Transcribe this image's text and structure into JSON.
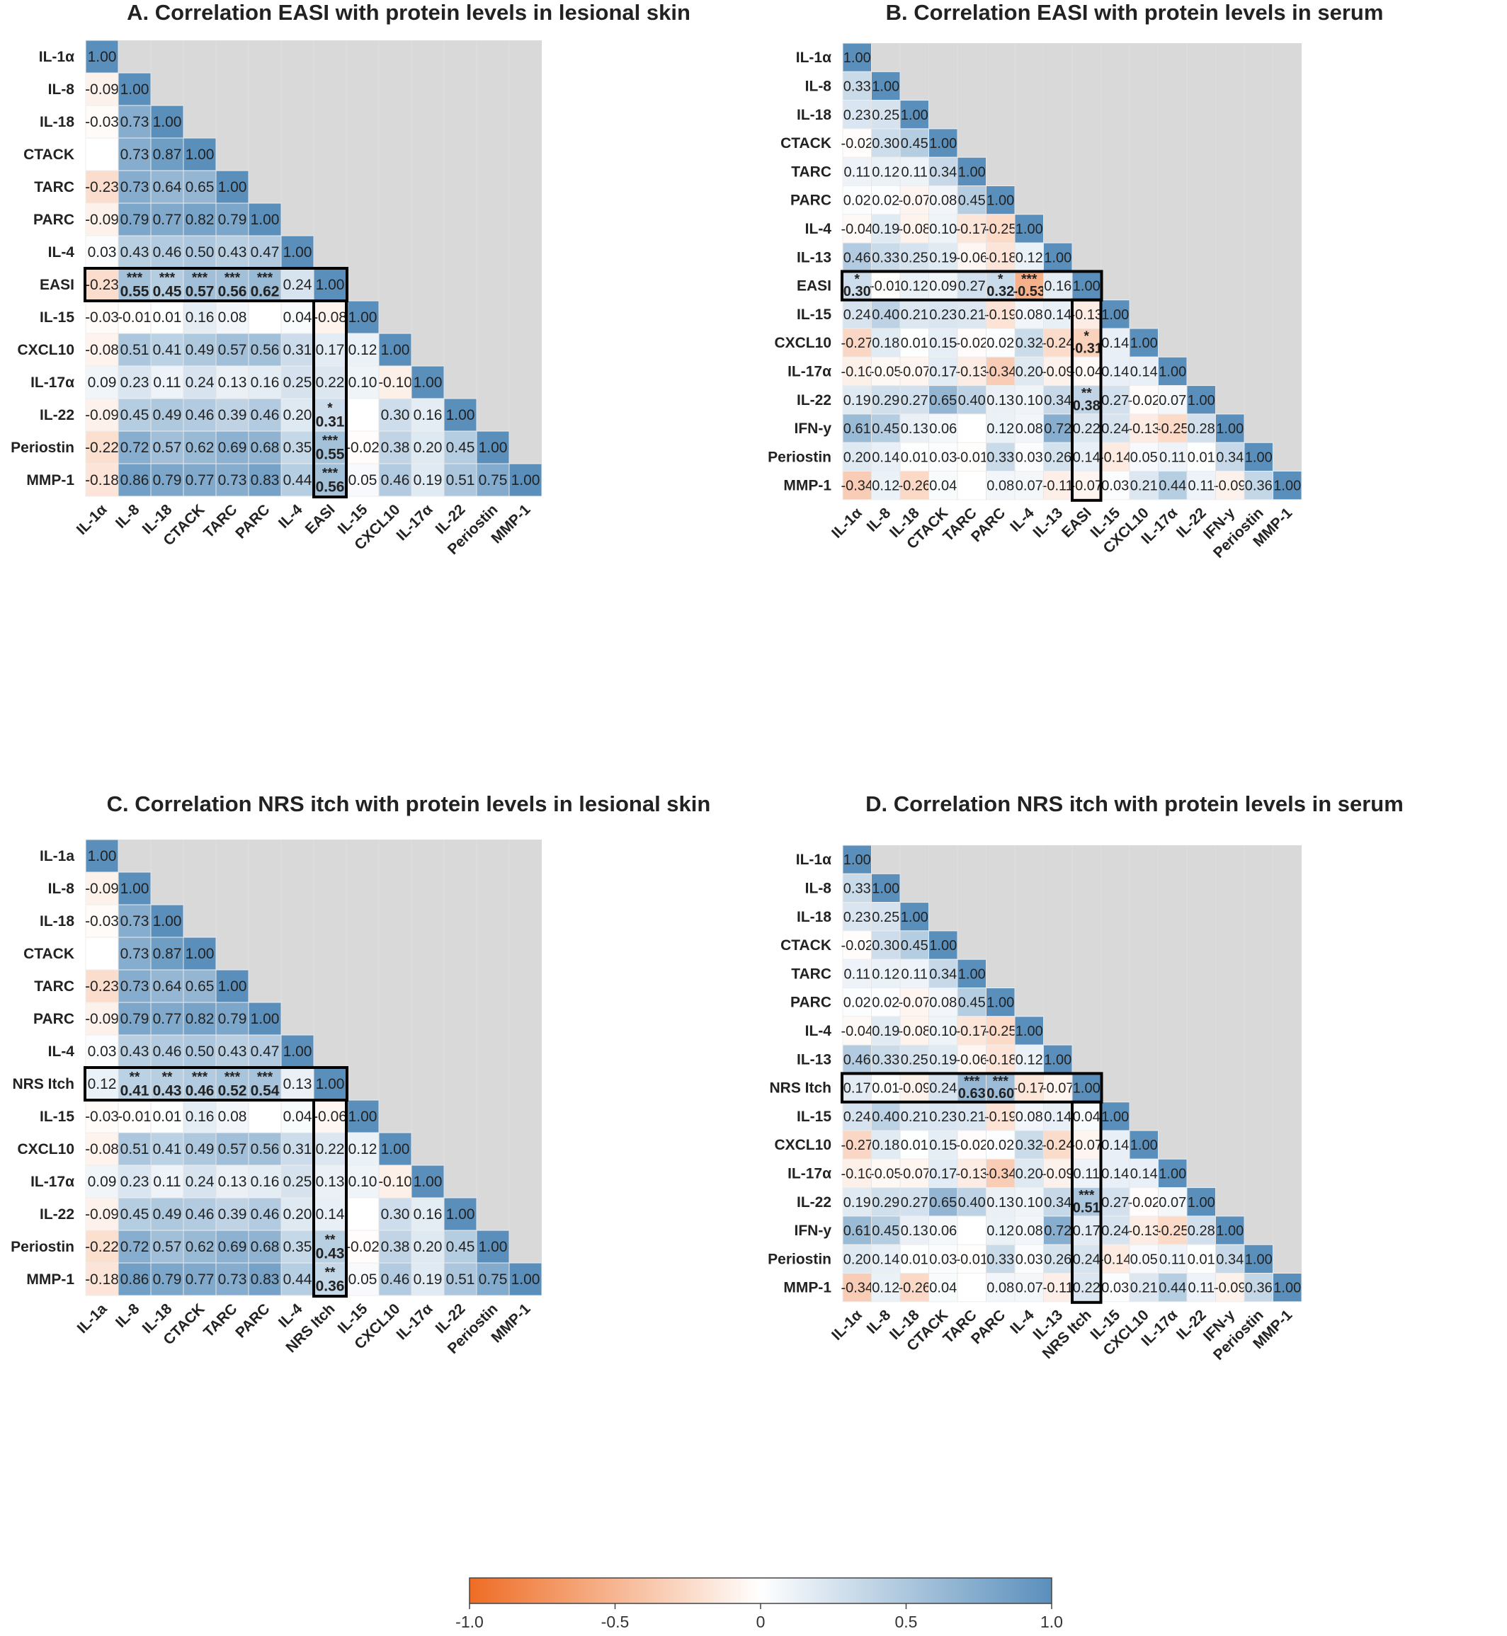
{
  "colors": {
    "negative": "#ee6c24",
    "zero": "#ffffff",
    "positive": "#5a8fbc",
    "background": "#d9d9d9"
  },
  "colorbar": {
    "ticks": [
      "-1.0",
      "-0.5",
      "0",
      "0.5",
      "1.0"
    ],
    "min": -1,
    "max": 1
  },
  "chart_data": [
    {
      "type": "heatmap",
      "title": "A. Correlation EASI with protein levels in lesional skin",
      "row_labels": [
        "IL-1α",
        "IL-8",
        "IL-18",
        "CTACK",
        "TARC",
        "PARC",
        "IL-4",
        "EASI",
        "IL-15",
        "CXCL10",
        "IL-17α",
        "IL-22",
        "Periostin",
        "MMP-1"
      ],
      "col_labels": [
        "IL-1α",
        "IL-8",
        "IL-18",
        "CTACK",
        "TARC",
        "PARC",
        "IL-4",
        "EASI",
        "IL-15",
        "CXCL10",
        "IL-17α",
        "IL-22",
        "Periostin",
        "MMP-1"
      ],
      "highlight_index": 7,
      "rows": [
        [
          "1.00"
        ],
        [
          "-0.09",
          "1.00"
        ],
        [
          "-0.03",
          "0.73",
          "1.00"
        ],
        [
          "",
          "0.73",
          "0.87",
          "1.00"
        ],
        [
          "-0.23",
          "0.73",
          "0.64",
          "0.65",
          "1.00"
        ],
        [
          "-0.09",
          "0.79",
          "0.77",
          "0.82",
          "0.79",
          "1.00"
        ],
        [
          "0.03",
          "0.43",
          "0.46",
          "0.50",
          "0.43",
          "0.47",
          "1.00"
        ],
        [
          "-0.23",
          "0.55",
          "0.45",
          "0.57",
          "0.56",
          "0.62",
          "0.24",
          "1.00"
        ],
        [
          "-0.03",
          "-0.01",
          "0.01",
          "0.16",
          "0.08",
          "",
          "0.04",
          "-0.08",
          "1.00"
        ],
        [
          "-0.08",
          "0.51",
          "0.41",
          "0.49",
          "0.57",
          "0.56",
          "0.31",
          "0.17",
          "0.12",
          "1.00"
        ],
        [
          "0.09",
          "0.23",
          "0.11",
          "0.24",
          "0.13",
          "0.16",
          "0.25",
          "0.22",
          "0.10",
          "-0.10",
          "1.00"
        ],
        [
          "-0.09",
          "0.45",
          "0.49",
          "0.46",
          "0.39",
          "0.46",
          "0.20",
          "0.31",
          "",
          "0.30",
          "0.16",
          "1.00"
        ],
        [
          "-0.22",
          "0.72",
          "0.57",
          "0.62",
          "0.69",
          "0.68",
          "0.35",
          "0.55",
          "-0.02",
          "0.38",
          "0.20",
          "0.45",
          "1.00"
        ],
        [
          "-0.18",
          "0.86",
          "0.79",
          "0.77",
          "0.73",
          "0.83",
          "0.44",
          "0.56",
          "0.05",
          "0.46",
          "0.19",
          "0.51",
          "0.75",
          "1.00"
        ]
      ],
      "significance": [
        [
          "7-1",
          "***"
        ],
        [
          "7-2",
          "***"
        ],
        [
          "7-3",
          "***"
        ],
        [
          "7-4",
          "***"
        ],
        [
          "7-5",
          "***"
        ],
        [
          "11-7",
          "*"
        ],
        [
          "12-7",
          "***"
        ],
        [
          "13-7",
          "***"
        ]
      ]
    },
    {
      "type": "heatmap",
      "title": "B. Correlation EASI with protein levels in serum",
      "row_labels": [
        "IL-1α",
        "IL-8",
        "IL-18",
        "CTACK",
        "TARC",
        "PARC",
        "IL-4",
        "IL-13",
        "EASI",
        "IL-15",
        "CXCL10",
        "IL-17α",
        "IL-22",
        "IFN-y",
        "Periostin",
        "MMP-1"
      ],
      "col_labels": [
        "IL-1α",
        "IL-8",
        "IL-18",
        "CTACK",
        "TARC",
        "PARC",
        "IL-4",
        "IL-13",
        "EASI",
        "IL-15",
        "CXCL10",
        "IL-17α",
        "IL-22",
        "IFN-y",
        "Periostin",
        "MMP-1"
      ],
      "highlight_index": 8,
      "rows": [
        [
          "1.00"
        ],
        [
          "0.33",
          "1.00"
        ],
        [
          "0.23",
          "0.25",
          "1.00"
        ],
        [
          "-0.02",
          "0.30",
          "0.45",
          "1.00"
        ],
        [
          "0.11",
          "0.12",
          "0.11",
          "0.34",
          "1.00"
        ],
        [
          "0.02",
          "0.02",
          "-0.07",
          "0.08",
          "0.45",
          "1.00"
        ],
        [
          "-0.04",
          "0.19",
          "-0.08",
          "0.10",
          "-0.17",
          "-0.25",
          "1.00"
        ],
        [
          "0.46",
          "0.33",
          "0.25",
          "0.19",
          "-0.06",
          "-0.18",
          "0.12",
          "1.00"
        ],
        [
          "0.30",
          "-0.01",
          "0.12",
          "0.09",
          "0.27",
          "0.32",
          "-0.53",
          "0.16",
          "1.00"
        ],
        [
          "0.24",
          "0.40",
          "0.21",
          "0.23",
          "0.21",
          "-0.19",
          "0.08",
          "0.14",
          "-0.13",
          "1.00"
        ],
        [
          "-0.27",
          "0.18",
          "0.01",
          "0.15",
          "-0.02",
          "0.02",
          "0.32",
          "-0.24",
          "-0.31",
          "0.14",
          "1.00"
        ],
        [
          "-0.10",
          "-0.05",
          "-0.07",
          "0.17",
          "-0.13",
          "-0.34",
          "0.20",
          "-0.09",
          "-0.04",
          "0.14",
          "0.14",
          "1.00"
        ],
        [
          "0.19",
          "0.29",
          "0.27",
          "0.65",
          "0.40",
          "0.13",
          "0.10",
          "0.34",
          "0.38",
          "0.27",
          "-0.02",
          "0.07",
          "1.00"
        ],
        [
          "0.61",
          "0.45",
          "0.13",
          "0.06",
          "",
          "0.12",
          "0.08",
          "0.72",
          "0.22",
          "0.24",
          "-0.13",
          "-0.25",
          "0.28",
          "1.00"
        ],
        [
          "0.20",
          "0.14",
          "0.01",
          "0.03",
          "-0.01",
          "0.33",
          "0.03",
          "0.26",
          "0.14",
          "-0.14",
          "0.05",
          "0.11",
          "0.01",
          "0.34",
          "1.00"
        ],
        [
          "-0.34",
          "0.12",
          "-0.26",
          "0.04",
          "",
          "0.08",
          "0.07",
          "-0.11",
          "-0.07",
          "0.03",
          "0.21",
          "0.44",
          "0.11",
          "-0.09",
          "0.36",
          "1.00"
        ]
      ],
      "significance": [
        [
          "8-0",
          "*"
        ],
        [
          "8-5",
          "*"
        ],
        [
          "8-6",
          "***"
        ],
        [
          "10-8",
          "*"
        ],
        [
          "12-8",
          "**"
        ]
      ]
    },
    {
      "type": "heatmap",
      "title": "C. Correlation NRS itch with protein levels in lesional skin",
      "row_labels": [
        "IL-1a",
        "IL-8",
        "IL-18",
        "CTACK",
        "TARC",
        "PARC",
        "IL-4",
        "NRS Itch",
        "IL-15",
        "CXCL10",
        "IL-17α",
        "IL-22",
        "Periostin",
        "MMP-1"
      ],
      "col_labels": [
        "IL-1a",
        "IL-8",
        "IL-18",
        "CTACK",
        "TARC",
        "PARC",
        "IL-4",
        "NRS Itch",
        "IL-15",
        "CXCL10",
        "IL-17α",
        "IL-22",
        "Periostin",
        "MMP-1"
      ],
      "highlight_index": 7,
      "rows": [
        [
          "1.00"
        ],
        [
          "-0.09",
          "1.00"
        ],
        [
          "-0.03",
          "0.73",
          "1.00"
        ],
        [
          "",
          "0.73",
          "0.87",
          "1.00"
        ],
        [
          "-0.23",
          "0.73",
          "0.64",
          "0.65",
          "1.00"
        ],
        [
          "-0.09",
          "0.79",
          "0.77",
          "0.82",
          "0.79",
          "1.00"
        ],
        [
          "0.03",
          "0.43",
          "0.46",
          "0.50",
          "0.43",
          "0.47",
          "1.00"
        ],
        [
          "0.12",
          "0.41",
          "0.43",
          "0.46",
          "0.52",
          "0.54",
          "0.13",
          "1.00"
        ],
        [
          "-0.03",
          "-0.01",
          "0.01",
          "0.16",
          "0.08",
          "",
          "0.04",
          "-0.06",
          "1.00"
        ],
        [
          "-0.08",
          "0.51",
          "0.41",
          "0.49",
          "0.57",
          "0.56",
          "0.31",
          "0.22",
          "0.12",
          "1.00"
        ],
        [
          "0.09",
          "0.23",
          "0.11",
          "0.24",
          "0.13",
          "0.16",
          "0.25",
          "0.13",
          "0.10",
          "-0.10",
          "1.00"
        ],
        [
          "-0.09",
          "0.45",
          "0.49",
          "0.46",
          "0.39",
          "0.46",
          "0.20",
          "0.14",
          "",
          "0.30",
          "0.16",
          "1.00"
        ],
        [
          "-0.22",
          "0.72",
          "0.57",
          "0.62",
          "0.69",
          "0.68",
          "0.35",
          "0.43",
          "-0.02",
          "0.38",
          "0.20",
          "0.45",
          "1.00"
        ],
        [
          "-0.18",
          "0.86",
          "0.79",
          "0.77",
          "0.73",
          "0.83",
          "0.44",
          "0.36",
          "0.05",
          "0.46",
          "0.19",
          "0.51",
          "0.75",
          "1.00"
        ]
      ],
      "significance": [
        [
          "7-1",
          "**"
        ],
        [
          "7-2",
          "**"
        ],
        [
          "7-3",
          "***"
        ],
        [
          "7-4",
          "***"
        ],
        [
          "7-5",
          "***"
        ],
        [
          "12-7",
          "**"
        ],
        [
          "13-7",
          "**"
        ]
      ]
    },
    {
      "type": "heatmap",
      "title": "D. Correlation NRS itch with protein levels in serum",
      "row_labels": [
        "IL-1α",
        "IL-8",
        "IL-18",
        "CTACK",
        "TARC",
        "PARC",
        "IL-4",
        "IL-13",
        "NRS Itch",
        "IL-15",
        "CXCL10",
        "IL-17α",
        "IL-22",
        "IFN-y",
        "Periostin",
        "MMP-1"
      ],
      "col_labels": [
        "IL-1α",
        "IL-8",
        "IL-18",
        "CTACK",
        "TARC",
        "PARC",
        "IL-4",
        "IL-13",
        "NRS Itch",
        "IL-15",
        "CXCL10",
        "IL-17α",
        "IL-22",
        "IFN-y",
        "Periostin",
        "MMP-1"
      ],
      "highlight_index": 8,
      "rows": [
        [
          "1.00"
        ],
        [
          "0.33",
          "1.00"
        ],
        [
          "0.23",
          "0.25",
          "1.00"
        ],
        [
          "-0.02",
          "0.30",
          "0.45",
          "1.00"
        ],
        [
          "0.11",
          "0.12",
          "0.11",
          "0.34",
          "1.00"
        ],
        [
          "0.02",
          "0.02",
          "-0.07",
          "0.08",
          "0.45",
          "1.00"
        ],
        [
          "-0.04",
          "0.19",
          "-0.08",
          "0.10",
          "-0.17",
          "-0.25",
          "1.00"
        ],
        [
          "0.46",
          "0.33",
          "0.25",
          "0.19",
          "-0.06",
          "-0.18",
          "0.12",
          "1.00"
        ],
        [
          "0.17",
          "0.01",
          "-0.09",
          "0.24",
          "0.63",
          "0.60",
          "-0.17",
          "-0.07",
          "1.00"
        ],
        [
          "0.24",
          "0.40",
          "0.21",
          "0.23",
          "0.21",
          "-0.19",
          "0.08",
          "0.14",
          "0.04",
          "1.00"
        ],
        [
          "-0.27",
          "0.18",
          "0.01",
          "0.15",
          "-0.02",
          "0.02",
          "0.32",
          "-0.24",
          "-0.07",
          "0.14",
          "1.00"
        ],
        [
          "-0.10",
          "-0.05",
          "-0.07",
          "0.17",
          "-0.13",
          "-0.34",
          "0.20",
          "-0.09",
          "0.11",
          "0.14",
          "0.14",
          "1.00"
        ],
        [
          "0.19",
          "0.29",
          "0.27",
          "0.65",
          "0.40",
          "0.13",
          "0.10",
          "0.34",
          "0.51",
          "0.27",
          "-0.02",
          "0.07",
          "1.00"
        ],
        [
          "0.61",
          "0.45",
          "0.13",
          "0.06",
          "",
          "0.12",
          "0.08",
          "0.72",
          "0.17",
          "0.24",
          "-0.13",
          "-0.25",
          "0.28",
          "1.00"
        ],
        [
          "0.20",
          "0.14",
          "0.01",
          "0.03",
          "-0.01",
          "0.33",
          "0.03",
          "0.26",
          "0.24",
          "-0.14",
          "0.05",
          "0.11",
          "0.01",
          "0.34",
          "1.00"
        ],
        [
          "-0.34",
          "0.12",
          "-0.26",
          "0.04",
          "",
          "0.08",
          "0.07",
          "-0.11",
          "0.22",
          "0.03",
          "0.21",
          "0.44",
          "0.11",
          "-0.09",
          "0.36",
          "1.00"
        ]
      ],
      "significance": [
        [
          "8-4",
          "***"
        ],
        [
          "8-5",
          "***"
        ],
        [
          "12-8",
          "***"
        ]
      ]
    }
  ]
}
